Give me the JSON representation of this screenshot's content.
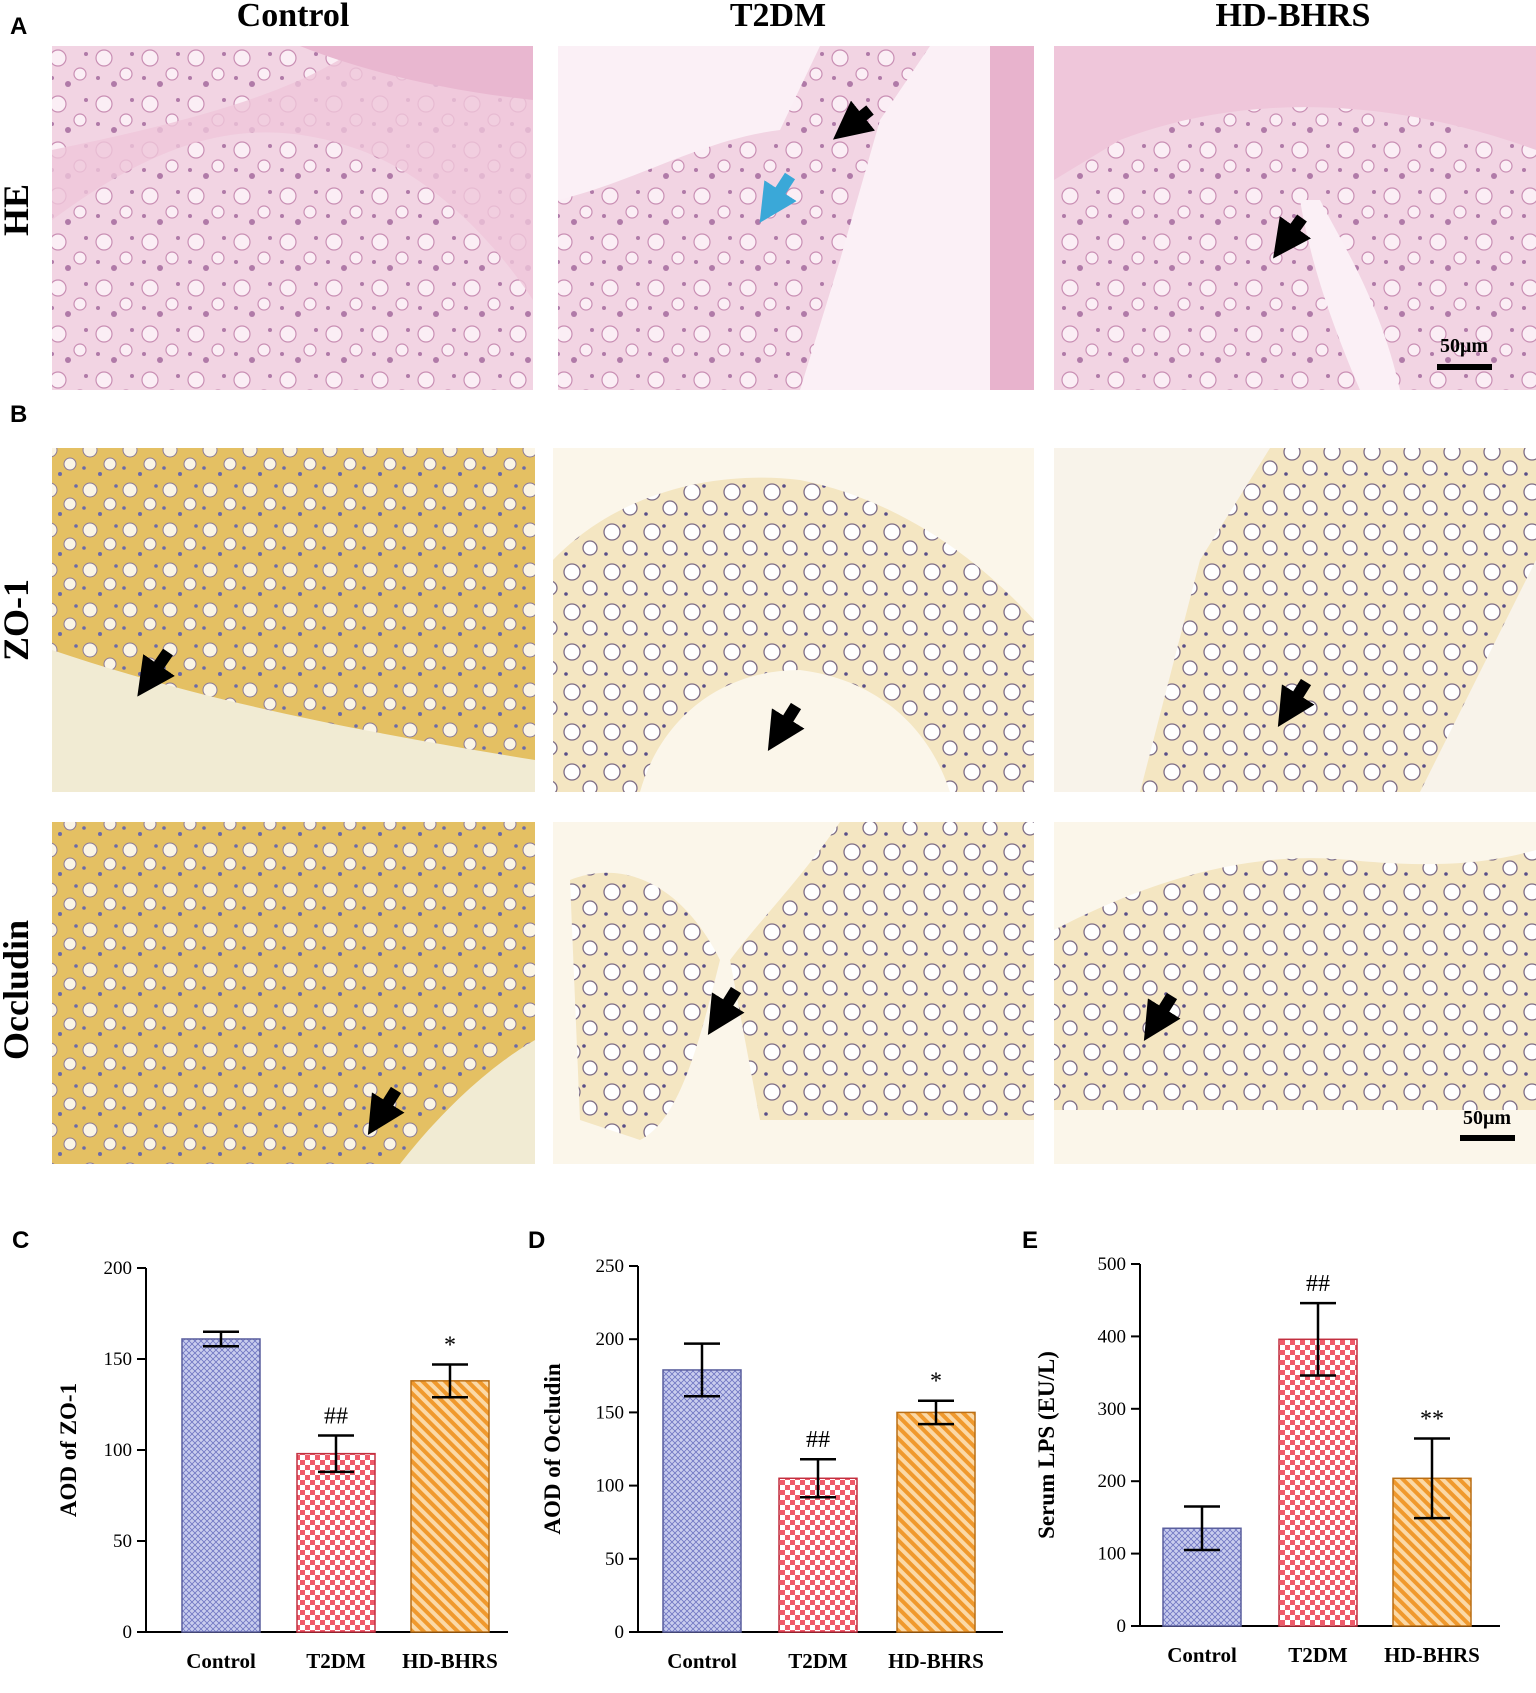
{
  "figure": {
    "panel_letters": [
      "A",
      "B",
      "C",
      "D",
      "E"
    ],
    "columns": [
      "Control",
      "T2DM",
      "HD-BHRS"
    ],
    "rows": {
      "he": "HE",
      "zo1": "ZO-1",
      "occludin": "Occludin"
    },
    "scale_bar": "50μm"
  },
  "colors": {
    "he_tissue": "#e9b6cf",
    "he_bg": "#f4dbe8",
    "ihc_bg_gold": "#e6c673",
    "ihc_pale": "#f3e7c6",
    "bar_control": "#aab0de",
    "bar_t2dm": "#f0707c",
    "bar_hd": "#f3a847"
  },
  "chart_data": [
    {
      "type": "bar",
      "panel": "C",
      "categories": [
        "Control",
        "T2DM",
        "HD-BHRS"
      ],
      "values": [
        161,
        98,
        138
      ],
      "errors": [
        4,
        10,
        9
      ],
      "significance": [
        "",
        "##",
        "*"
      ],
      "ylabel": "AOD of ZO-1",
      "ylim": [
        0,
        200
      ],
      "yticks": [
        0,
        50,
        100,
        150,
        200
      ]
    },
    {
      "type": "bar",
      "panel": "D",
      "categories": [
        "Control",
        "T2DM",
        "HD-BHRS"
      ],
      "values": [
        179,
        105,
        150
      ],
      "errors": [
        18,
        13,
        8
      ],
      "significance": [
        "",
        "##",
        "*"
      ],
      "ylabel": "AOD of Occludin",
      "ylim": [
        0,
        250
      ],
      "yticks": [
        0,
        50,
        100,
        150,
        200,
        250
      ]
    },
    {
      "type": "bar",
      "panel": "E",
      "categories": [
        "Control",
        "T2DM",
        "HD-BHRS"
      ],
      "values": [
        135,
        396,
        204
      ],
      "errors": [
        30,
        50,
        55
      ],
      "significance": [
        "",
        "##",
        "**"
      ],
      "ylabel": "Serum LPS (EU/L)",
      "ylim": [
        0,
        500
      ],
      "yticks": [
        0,
        100,
        200,
        300,
        400,
        500
      ]
    }
  ]
}
